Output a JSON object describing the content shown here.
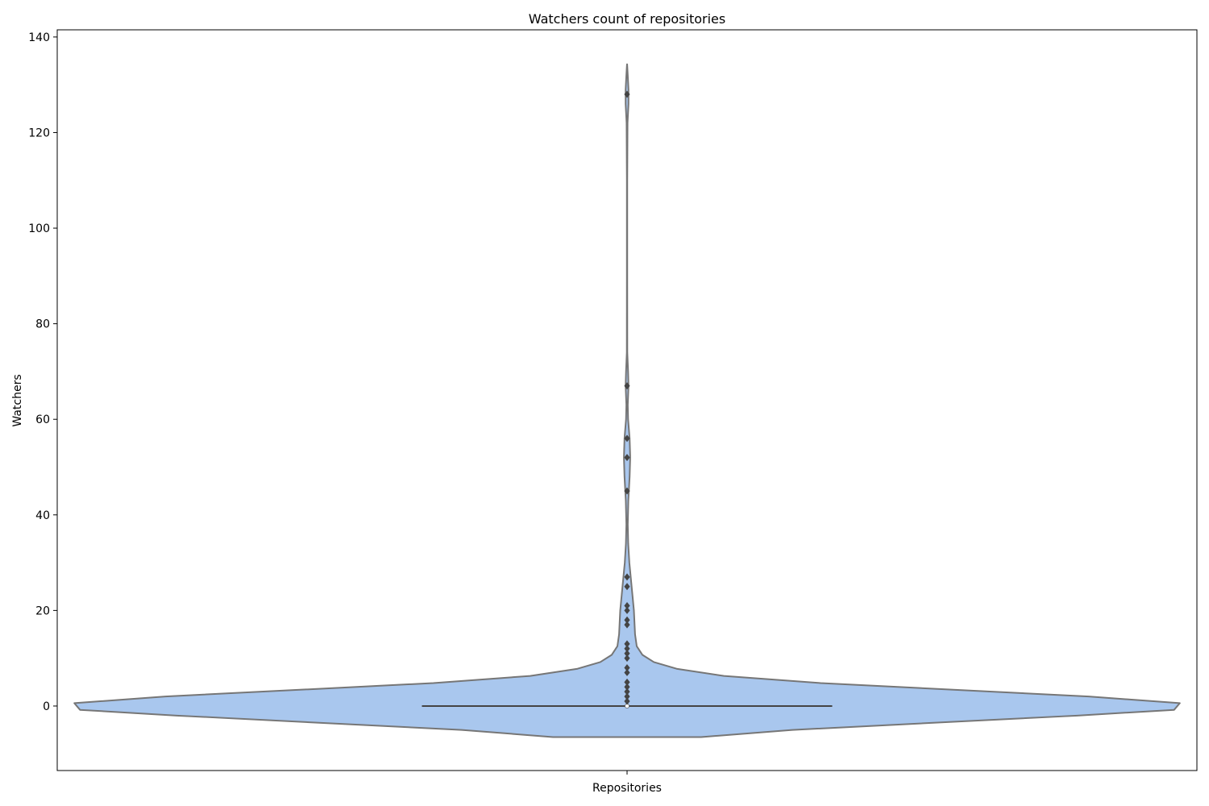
{
  "chart_data": {
    "type": "violin",
    "title": "Watchers count of repositories",
    "xlabel": "",
    "ylabel": "Watchers",
    "categories": [
      "Repositories"
    ],
    "ylim": [
      -13.5,
      141.5
    ],
    "yticks": [
      0,
      20,
      40,
      60,
      80,
      100,
      120,
      140
    ],
    "grid": false,
    "legend": "none",
    "colors": {
      "fill": "#a9c7ee",
      "outline": "#767676",
      "points": "#444444",
      "median": "#ffffff"
    },
    "density_profile": [
      {
        "y": -6.5,
        "halfwidth": 0.13
      },
      {
        "y": -5,
        "halfwidth": 0.29
      },
      {
        "y": -2,
        "halfwidth": 0.79
      },
      {
        "y": -0.8,
        "halfwidth": 0.96
      },
      {
        "y": 0.6,
        "halfwidth": 0.97
      },
      {
        "y": 2.0,
        "halfwidth": 0.81
      },
      {
        "y": 4.8,
        "halfwidth": 0.34
      },
      {
        "y": 6.3,
        "halfwidth": 0.17
      },
      {
        "y": 7.8,
        "halfwidth": 0.087
      },
      {
        "y": 9.2,
        "halfwidth": 0.047
      },
      {
        "y": 10.7,
        "halfwidth": 0.027
      },
      {
        "y": 12.5,
        "halfwidth": 0.017
      },
      {
        "y": 15,
        "halfwidth": 0.014
      },
      {
        "y": 20,
        "halfwidth": 0.012
      },
      {
        "y": 25,
        "halfwidth": 0.008
      },
      {
        "y": 30,
        "halfwidth": 0.004
      },
      {
        "y": 34,
        "halfwidth": 0.002
      },
      {
        "y": 38,
        "halfwidth": 0.0012
      },
      {
        "y": 43,
        "halfwidth": 0.0022
      },
      {
        "y": 48,
        "halfwidth": 0.0045
      },
      {
        "y": 52,
        "halfwidth": 0.0055
      },
      {
        "y": 56,
        "halfwidth": 0.0045
      },
      {
        "y": 60,
        "halfwidth": 0.0018
      },
      {
        "y": 63,
        "halfwidth": 0.0012
      },
      {
        "y": 67,
        "halfwidth": 0.0025
      },
      {
        "y": 70,
        "halfwidth": 0.0018
      },
      {
        "y": 74,
        "halfwidth": 0.0004
      },
      {
        "y": 90,
        "halfwidth": 0.0003
      },
      {
        "y": 110,
        "halfwidth": 0.0003
      },
      {
        "y": 122,
        "halfwidth": 0.0008
      },
      {
        "y": 126,
        "halfwidth": 0.0025
      },
      {
        "y": 129,
        "halfwidth": 0.0025
      },
      {
        "y": 132,
        "halfwidth": 0.0012
      },
      {
        "y": 134.3,
        "halfwidth": 0.0001
      }
    ],
    "box": {
      "q1": 0,
      "median": 0,
      "q3": 0,
      "whisker_low": 0,
      "whisker_high": 0,
      "whisker_halfwidth": 0.36
    },
    "outliers": [
      1,
      2,
      3,
      4,
      5,
      7,
      8,
      10,
      11,
      12,
      13,
      17,
      18,
      20,
      21,
      25,
      27,
      45,
      52,
      56,
      67,
      128
    ]
  }
}
